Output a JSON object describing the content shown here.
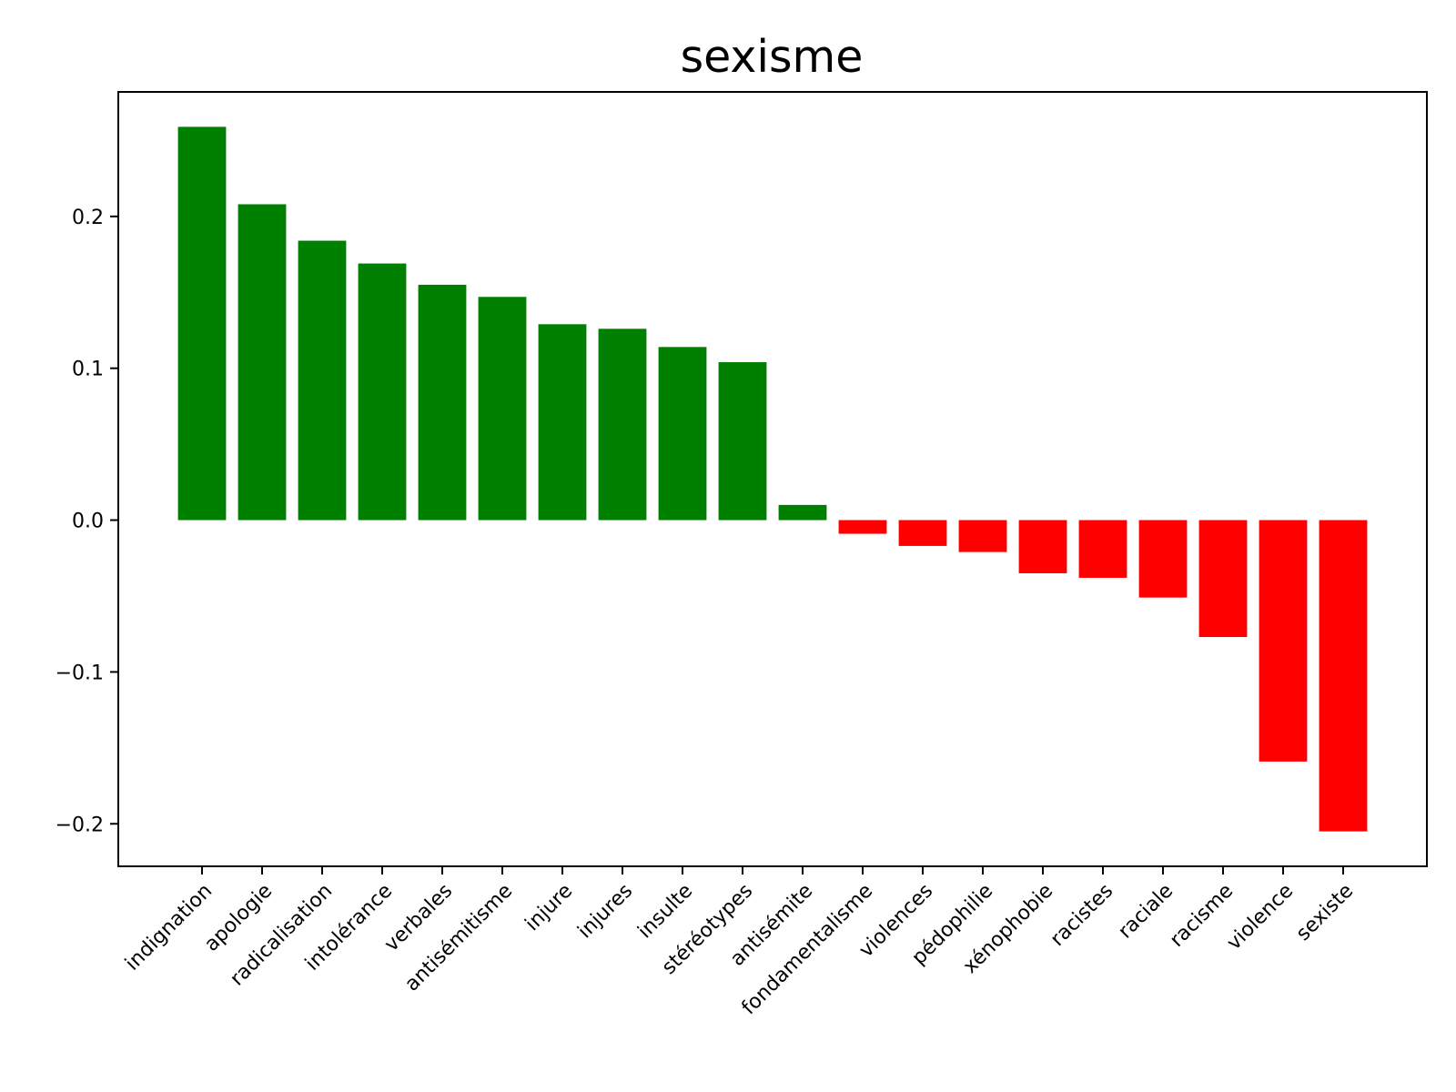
{
  "chart_data": {
    "type": "bar",
    "title": "sexisme",
    "xlabel": "",
    "ylabel": "",
    "ylim": [
      -0.228,
      0.282
    ],
    "yticks": [
      -0.2,
      -0.1,
      0.0,
      0.1,
      0.2
    ],
    "ytick_labels": [
      "−0.2",
      "−0.1",
      "0.0",
      "0.1",
      "0.2"
    ],
    "categories": [
      "indignation",
      "apologie",
      "radicalisation",
      "intolérance",
      "verbales",
      "antisémitisme",
      "injure",
      "injures",
      "insulte",
      "stéréotypes",
      "antisémite",
      "fondamentalisme",
      "violences",
      "pédophilie",
      "xénophobie",
      "racistes",
      "raciale",
      "racisme",
      "violence",
      "sexiste"
    ],
    "values": [
      0.259,
      0.208,
      0.184,
      0.169,
      0.155,
      0.147,
      0.129,
      0.126,
      0.114,
      0.104,
      0.01,
      -0.009,
      -0.017,
      -0.021,
      -0.035,
      -0.038,
      -0.051,
      -0.077,
      -0.159,
      -0.205
    ],
    "colors": {
      "positive": "#008000",
      "negative": "#ff0000"
    },
    "grid": false,
    "legend": "none",
    "xtick_rotation": 45
  }
}
